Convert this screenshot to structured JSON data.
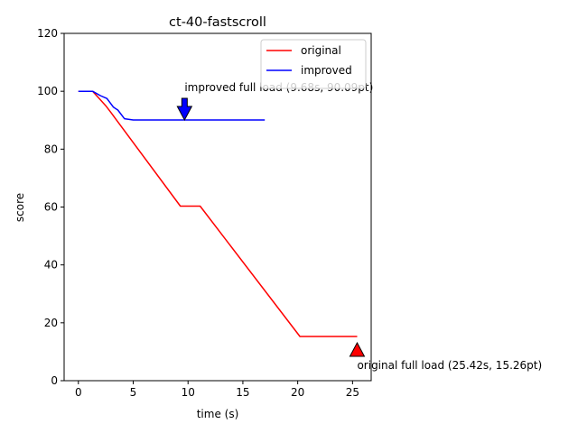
{
  "chart_data": {
    "type": "line",
    "title": "ct-40-fastscroll",
    "xlabel": "time (s)",
    "ylabel": "score",
    "xlim": [
      -1.3,
      26.7
    ],
    "ylim": [
      0,
      120
    ],
    "xticks": [
      0,
      5,
      10,
      15,
      20,
      25
    ],
    "yticks": [
      0,
      20,
      40,
      60,
      80,
      100,
      120
    ],
    "grid": false,
    "legend_position": "top-right",
    "series": [
      {
        "name": "original",
        "color": "#ff0000",
        "points": [
          [
            0,
            100
          ],
          [
            1.3,
            100
          ],
          [
            1.9,
            97.5
          ],
          [
            2.5,
            95
          ],
          [
            3.0,
            92.5
          ],
          [
            9.3,
            60.3
          ],
          [
            11.1,
            60.3
          ],
          [
            20.2,
            15.26
          ],
          [
            25.42,
            15.26
          ]
        ]
      },
      {
        "name": "improved",
        "color": "#0000ff",
        "points": [
          [
            0,
            100
          ],
          [
            1.3,
            100
          ],
          [
            2.0,
            98.5
          ],
          [
            2.6,
            97.5
          ],
          [
            3.2,
            94.5
          ],
          [
            3.6,
            93.5
          ],
          [
            4.2,
            90.5
          ],
          [
            5.0,
            90.09
          ],
          [
            9.68,
            90.09
          ],
          [
            17.0,
            90.09
          ]
        ]
      }
    ],
    "annotations": [
      {
        "text": "improved full load (9.68s, 90.09pt)",
        "x": 9.68,
        "y": 90.09,
        "marker": "down-arrow",
        "color": "#0000ff"
      },
      {
        "text": "original full load (25.42s, 15.26pt)",
        "x": 25.42,
        "y": 15.26,
        "marker": "up-arrow",
        "color": "#ff0000"
      }
    ]
  }
}
